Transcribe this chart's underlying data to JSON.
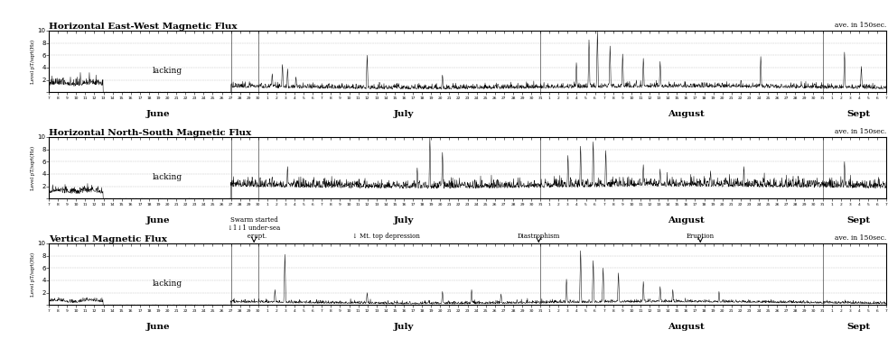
{
  "titles": [
    "Horizontal East-West Magnetic Flux",
    "Horizontal North-South Magnetic Flux",
    "Vertical Magnetic Flux"
  ],
  "ave_label": "ave. in 150sec.",
  "ylabel": "Level pT/sqrt(Hz)",
  "ylim": [
    0,
    10
  ],
  "yticks": [
    0,
    2,
    4,
    6,
    8,
    10
  ],
  "lacking_text": "lacking",
  "month_labels": [
    "June",
    "July",
    "August",
    "Sept"
  ],
  "bg_color": "#ffffff",
  "line_color": "#000000",
  "grid_color": "#aaaaaa",
  "fig_width": 9.83,
  "fig_height": 3.76,
  "N": 2790
}
